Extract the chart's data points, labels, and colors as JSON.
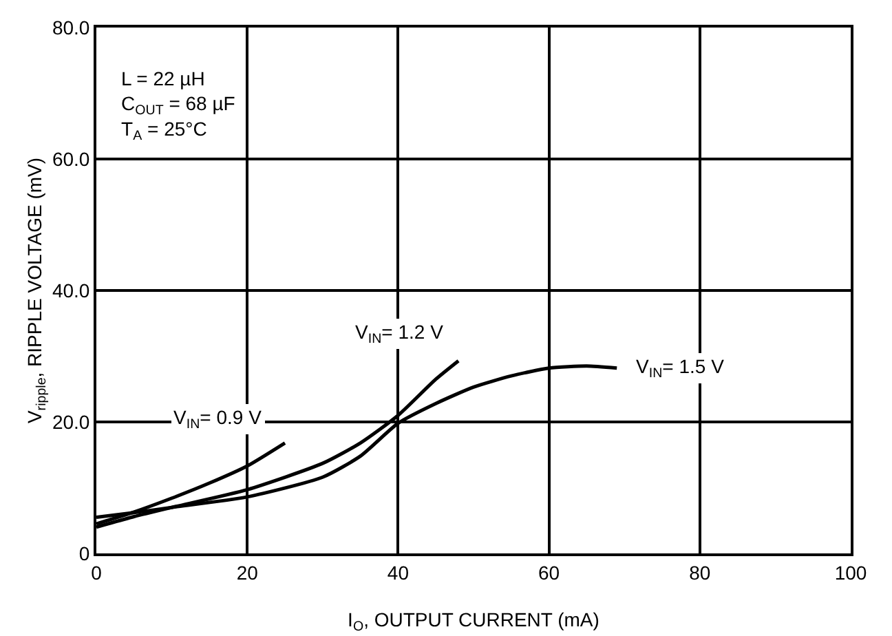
{
  "chart_data": {
    "type": "line",
    "xlabel": "I$_{O}$, OUTPUT CURRENT (mA)",
    "ylabel": "V$_{ripple}$, RIPPLE VOLTAGE (mV)",
    "annotations": [
      "L = 22 µH",
      "C$_{OUT}$ = 68 µF",
      "T$_{A}$ = 25°C"
    ],
    "xlim": [
      0,
      100
    ],
    "xticks": [
      0,
      20,
      40,
      60,
      80,
      100
    ],
    "ylim": [
      0,
      80
    ],
    "yticks": [
      0,
      {
        "value": 20,
        "label": "20.0"
      },
      {
        "value": 40,
        "label": "40.0"
      },
      {
        "value": 60,
        "label": "60.0"
      },
      {
        "value": 80,
        "label": "80.0"
      }
    ],
    "grid": true,
    "legend": false,
    "marker": "none",
    "line_style": "solid",
    "series": [
      {
        "name": "V$_{IN}$= 0.9 V",
        "color": "#000000",
        "x": [
          0,
          5,
          10,
          15,
          20,
          25
        ],
        "values": [
          4.5,
          6.3,
          8.4,
          10.7,
          13.3,
          16.8
        ]
      },
      {
        "name": "V$_{IN}$= 1.2 V",
        "color": "#000000",
        "x": [
          0,
          5,
          10,
          20,
          30,
          35,
          40,
          45,
          48
        ],
        "values": [
          4,
          5.6,
          7,
          9.7,
          13.7,
          16.8,
          21,
          26.5,
          29.3
        ]
      },
      {
        "name": "V$_{IN}$= 1.5 V",
        "color": "#000000",
        "x": [
          0,
          5,
          10,
          20,
          30,
          35,
          40,
          45,
          50,
          55,
          60,
          65,
          69
        ],
        "values": [
          5.5,
          6.2,
          7,
          8.6,
          11.6,
          14.8,
          19.8,
          22.8,
          25.3,
          27,
          28.2,
          28.5,
          28.2
        ]
      }
    ]
  }
}
